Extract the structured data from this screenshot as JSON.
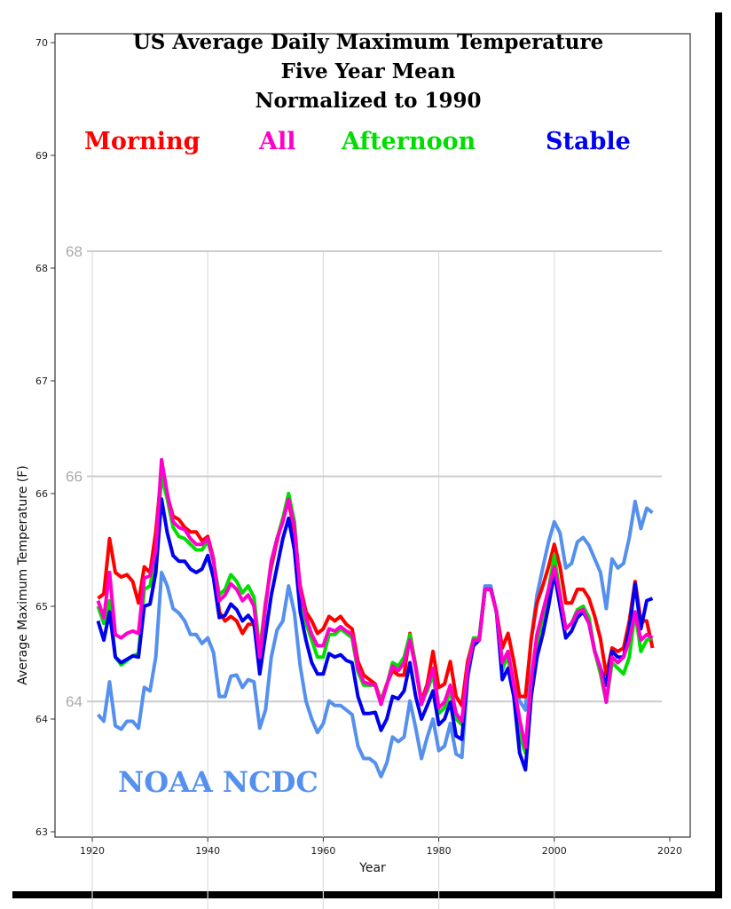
{
  "chart_data": {
    "type": "line",
    "title": [
      "US Average Daily Maximum Temperature",
      "Five Year Mean",
      "Normalized to 1990"
    ],
    "xlabel": "Year",
    "ylabel": "Average Maximum Temperature (F)",
    "xlim": [
      1915,
      2022
    ],
    "ylim": [
      62.9,
      70.2
    ],
    "xticks": [
      1920,
      1940,
      1960,
      1980,
      2000,
      2020
    ],
    "yticks": [
      63,
      64,
      65,
      66,
      67,
      68,
      69,
      70
    ],
    "overlay_yticks": [
      64,
      66,
      68
    ],
    "grid": true,
    "annotation": "NOAA NCDC",
    "legend": [
      {
        "label": "Morning",
        "color": "#ff0000"
      },
      {
        "label": "All",
        "color": "#ff00cc"
      },
      {
        "label": "Afternoon",
        "color": "#00dd00"
      },
      {
        "label": "Stable",
        "color": "#0000ee"
      }
    ],
    "x_start": 1921,
    "series": [
      {
        "name": "NOAA NCDC",
        "color": "#5590ee",
        "values": [
          64.04,
          63.98,
          64.33,
          63.94,
          63.91,
          63.98,
          63.98,
          63.92,
          64.28,
          64.25,
          64.55,
          65.3,
          65.18,
          64.98,
          64.94,
          64.87,
          64.75,
          64.75,
          64.67,
          64.72,
          64.59,
          64.2,
          64.2,
          64.38,
          64.39,
          64.28,
          64.35,
          64.33,
          63.92,
          64.08,
          64.55,
          64.79,
          64.87,
          65.18,
          64.94,
          64.47,
          64.16,
          64.0,
          63.88,
          63.96,
          64.16,
          64.12,
          64.12,
          64.08,
          64.04,
          63.76,
          63.65,
          63.65,
          63.61,
          63.49,
          63.61,
          63.84,
          63.8,
          63.84,
          64.16,
          63.92,
          63.65,
          63.84,
          64.0,
          63.72,
          63.76,
          63.96,
          63.69,
          63.66,
          64.35,
          64.67,
          64.71,
          65.18,
          65.18,
          64.94,
          64.43,
          64.59,
          64.31,
          64.16,
          64.08,
          64.71,
          65.1,
          65.34,
          65.57,
          65.75,
          65.65,
          65.34,
          65.38,
          65.57,
          65.61,
          65.54,
          65.42,
          65.3,
          64.98,
          65.42,
          65.34,
          65.38,
          65.61,
          65.93,
          65.69,
          65.87,
          65.83
        ]
      },
      {
        "name": "Morning",
        "color": "#ff0000",
        "values": [
          65.07,
          65.11,
          65.6,
          65.3,
          65.26,
          65.28,
          65.22,
          65.03,
          65.35,
          65.3,
          65.66,
          66.2,
          65.98,
          65.8,
          65.77,
          65.7,
          65.66,
          65.66,
          65.58,
          65.62,
          65.42,
          64.95,
          64.87,
          64.91,
          64.87,
          64.76,
          64.84,
          64.84,
          64.6,
          65.03,
          65.35,
          65.58,
          65.78,
          65.93,
          65.66,
          65.18,
          64.95,
          64.87,
          64.76,
          64.8,
          64.91,
          64.87,
          64.91,
          64.84,
          64.8,
          64.51,
          64.39,
          64.35,
          64.31,
          64.16,
          64.31,
          64.43,
          64.39,
          64.39,
          64.76,
          64.47,
          64.16,
          64.31,
          64.6,
          64.28,
          64.31,
          64.51,
          64.2,
          64.12,
          64.51,
          64.71,
          64.71,
          65.15,
          65.15,
          64.95,
          64.63,
          64.76,
          64.51,
          64.2,
          64.2,
          64.71,
          65.03,
          65.18,
          65.35,
          65.55,
          65.35,
          65.03,
          65.03,
          65.15,
          65.15,
          65.07,
          64.91,
          64.71,
          64.39,
          64.63,
          64.6,
          64.63,
          64.87,
          65.22,
          64.87,
          64.87,
          64.63
        ]
      },
      {
        "name": "Afternoon",
        "color": "#00dd00",
        "values": [
          65.0,
          64.85,
          65.05,
          64.55,
          64.48,
          64.52,
          64.56,
          64.58,
          65.15,
          65.18,
          65.45,
          66.15,
          65.95,
          65.7,
          65.62,
          65.6,
          65.55,
          65.5,
          65.5,
          65.58,
          65.4,
          65.1,
          65.15,
          65.28,
          65.22,
          65.12,
          65.18,
          65.08,
          64.6,
          65.0,
          65.4,
          65.6,
          65.78,
          66.0,
          65.75,
          65.1,
          64.85,
          64.7,
          64.55,
          64.55,
          64.75,
          64.75,
          64.8,
          64.76,
          64.72,
          64.42,
          64.3,
          64.3,
          64.3,
          64.15,
          64.3,
          64.5,
          64.47,
          64.55,
          64.75,
          64.45,
          64.15,
          64.25,
          64.4,
          64.05,
          64.1,
          64.25,
          64.0,
          63.95,
          64.45,
          64.72,
          64.72,
          65.15,
          65.15,
          64.95,
          64.45,
          64.55,
          64.25,
          63.85,
          63.7,
          64.3,
          64.65,
          64.9,
          65.15,
          65.45,
          65.1,
          64.8,
          64.85,
          64.97,
          65.0,
          64.9,
          64.6,
          64.4,
          64.15,
          64.5,
          64.45,
          64.4,
          64.55,
          64.95,
          64.6,
          64.7,
          64.72
        ]
      },
      {
        "name": "Stable",
        "color": "#0000ee",
        "values": [
          64.87,
          64.7,
          64.95,
          64.55,
          64.5,
          64.53,
          64.56,
          64.55,
          65.0,
          65.02,
          65.3,
          65.95,
          65.65,
          65.45,
          65.4,
          65.4,
          65.33,
          65.3,
          65.33,
          65.45,
          65.25,
          64.9,
          64.92,
          65.02,
          64.97,
          64.87,
          64.92,
          64.85,
          64.4,
          64.75,
          65.1,
          65.35,
          65.6,
          65.78,
          65.5,
          64.95,
          64.7,
          64.5,
          64.4,
          64.4,
          64.58,
          64.55,
          64.57,
          64.52,
          64.5,
          64.2,
          64.05,
          64.05,
          64.06,
          63.9,
          64.0,
          64.2,
          64.18,
          64.25,
          64.5,
          64.2,
          64.0,
          64.12,
          64.25,
          63.95,
          64.0,
          64.15,
          63.85,
          63.82,
          64.4,
          64.65,
          64.7,
          65.15,
          65.15,
          64.95,
          64.35,
          64.45,
          64.2,
          63.7,
          63.55,
          64.2,
          64.55,
          64.75,
          65.0,
          65.3,
          65.0,
          64.72,
          64.78,
          64.9,
          64.95,
          64.85,
          64.6,
          64.45,
          64.3,
          64.6,
          64.55,
          64.55,
          64.8,
          65.2,
          64.8,
          65.05,
          65.07
        ]
      },
      {
        "name": "All",
        "color": "#ff00cc",
        "values": [
          65.05,
          64.9,
          65.3,
          64.75,
          64.72,
          64.76,
          64.78,
          64.76,
          65.25,
          65.27,
          65.5,
          66.3,
          66.0,
          65.75,
          65.7,
          65.68,
          65.6,
          65.55,
          65.55,
          65.6,
          65.4,
          65.05,
          65.1,
          65.2,
          65.15,
          65.05,
          65.1,
          65.0,
          64.55,
          65.0,
          65.4,
          65.6,
          65.75,
          65.95,
          65.7,
          65.15,
          64.9,
          64.75,
          64.65,
          64.65,
          64.8,
          64.78,
          64.82,
          64.78,
          64.75,
          64.45,
          64.33,
          64.31,
          64.3,
          64.13,
          64.3,
          64.47,
          64.43,
          64.5,
          64.7,
          64.45,
          64.13,
          64.28,
          64.45,
          64.1,
          64.15,
          64.3,
          64.05,
          63.98,
          64.45,
          64.7,
          64.7,
          65.15,
          65.15,
          64.95,
          64.5,
          64.6,
          64.3,
          64.0,
          63.75,
          64.35,
          64.75,
          64.95,
          65.15,
          65.35,
          65.1,
          64.8,
          64.85,
          64.95,
          64.97,
          64.85,
          64.6,
          64.45,
          64.15,
          64.55,
          64.5,
          64.55,
          64.7,
          64.95,
          64.7,
          64.75,
          64.72
        ]
      }
    ]
  }
}
